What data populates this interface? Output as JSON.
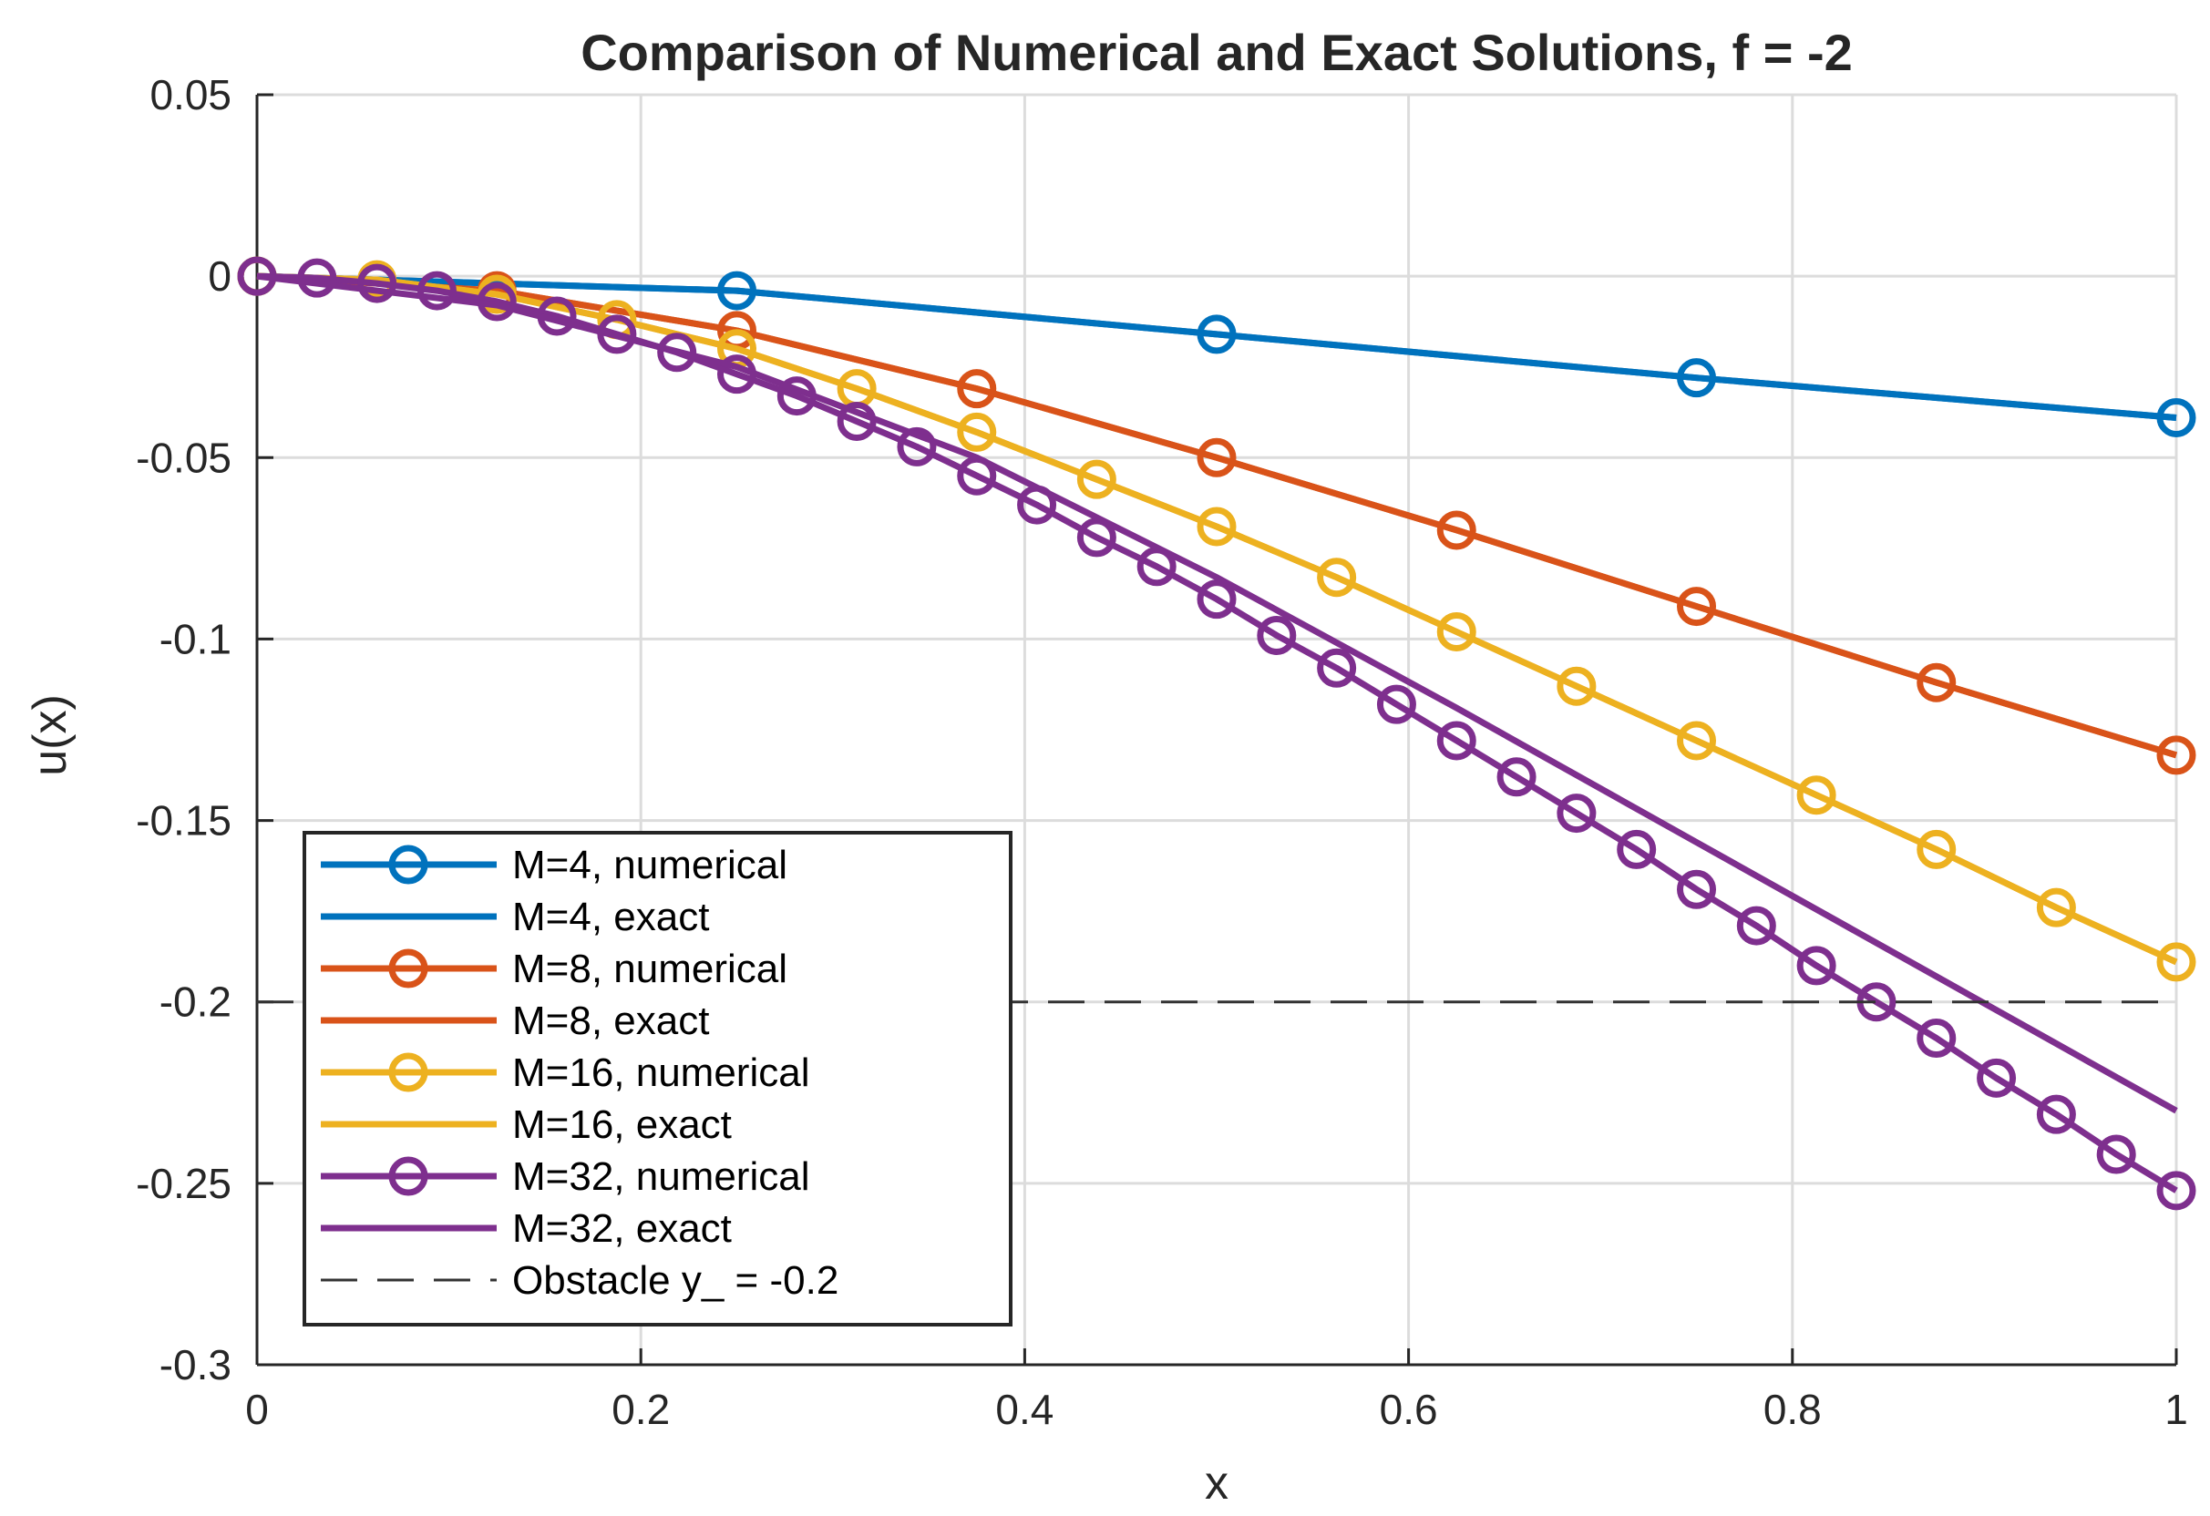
{
  "chart_data": {
    "type": "line",
    "title": "Comparison of Numerical and Exact Solutions, f = -2",
    "xlabel": "x",
    "ylabel": "u(x)",
    "xlim": [
      0,
      1
    ],
    "ylim": [
      -0.3,
      0.05
    ],
    "grid": true,
    "legend_position": "bottom-left",
    "x_ticks": [
      0,
      0.2,
      0.4,
      0.6,
      0.8,
      1
    ],
    "x_tick_labels": [
      "0",
      "0.2",
      "0.4",
      "0.6",
      "0.8",
      "1"
    ],
    "y_ticks": [
      0.05,
      0,
      -0.05,
      -0.1,
      -0.15,
      -0.2,
      -0.25,
      -0.3
    ],
    "y_tick_labels": [
      "0.05",
      "0",
      "-0.05",
      "-0.1",
      "-0.15",
      "-0.2",
      "-0.25",
      "-0.3"
    ],
    "series": [
      {
        "name": "M=4, numerical",
        "color": "#0072BD",
        "style": "line-marker",
        "x": [
          0,
          0.25,
          0.5,
          0.75,
          1
        ],
        "y": [
          0,
          -0.004,
          -0.016,
          -0.028,
          -0.039
        ]
      },
      {
        "name": "M=4, exact",
        "color": "#0072BD",
        "style": "line",
        "x": [
          0,
          0.25,
          0.5,
          0.75,
          1
        ],
        "y": [
          0,
          -0.004,
          -0.016,
          -0.028,
          -0.039
        ]
      },
      {
        "name": "M=8, numerical",
        "color": "#D95319",
        "style": "line-marker",
        "x": [
          0,
          0.125,
          0.25,
          0.375,
          0.5,
          0.625,
          0.75,
          0.875,
          1
        ],
        "y": [
          0,
          -0.004,
          -0.015,
          -0.031,
          -0.05,
          -0.07,
          -0.091,
          -0.112,
          -0.132
        ]
      },
      {
        "name": "M=8, exact",
        "color": "#D95319",
        "style": "line",
        "x": [
          0,
          0.125,
          0.25,
          0.375,
          0.5,
          0.625,
          0.75,
          0.875,
          1
        ],
        "y": [
          0,
          -0.004,
          -0.015,
          -0.031,
          -0.05,
          -0.07,
          -0.091,
          -0.112,
          -0.132
        ]
      },
      {
        "name": "M=16, numerical",
        "color": "#EDB120",
        "style": "line-marker",
        "x": [
          0,
          0.0625,
          0.125,
          0.1875,
          0.25,
          0.3125,
          0.375,
          0.4375,
          0.5,
          0.5625,
          0.625,
          0.6875,
          0.75,
          0.8125,
          0.875,
          0.9375,
          1
        ],
        "y": [
          0,
          -0.001,
          -0.005,
          -0.012,
          -0.02,
          -0.031,
          -0.043,
          -0.056,
          -0.069,
          -0.083,
          -0.098,
          -0.113,
          -0.128,
          -0.143,
          -0.158,
          -0.174,
          -0.189
        ]
      },
      {
        "name": "M=16, exact",
        "color": "#EDB120",
        "style": "line",
        "x": [
          0,
          0.0625,
          0.125,
          0.1875,
          0.25,
          0.3125,
          0.375,
          0.4375,
          0.5,
          0.5625,
          0.625,
          0.6875,
          0.75,
          0.8125,
          0.875,
          0.9375,
          1
        ],
        "y": [
          0,
          -0.001,
          -0.005,
          -0.012,
          -0.02,
          -0.031,
          -0.043,
          -0.056,
          -0.069,
          -0.083,
          -0.098,
          -0.113,
          -0.128,
          -0.143,
          -0.158,
          -0.174,
          -0.189
        ]
      },
      {
        "name": "M=32, numerical",
        "color": "#7E2F8E",
        "style": "line-marker",
        "x": [
          0,
          0.03125,
          0.0625,
          0.09375,
          0.125,
          0.15625,
          0.1875,
          0.21875,
          0.25,
          0.28125,
          0.3125,
          0.34375,
          0.375,
          0.40625,
          0.4375,
          0.46875,
          0.5,
          0.53125,
          0.5625,
          0.59375,
          0.625,
          0.65625,
          0.6875,
          0.71875,
          0.75,
          0.78125,
          0.8125,
          0.84375,
          0.875,
          0.90625,
          0.9375,
          0.96875,
          1
        ],
        "y": [
          0,
          -0.0005,
          -0.002,
          -0.004,
          -0.007,
          -0.011,
          -0.016,
          -0.021,
          -0.027,
          -0.033,
          -0.04,
          -0.047,
          -0.055,
          -0.063,
          -0.072,
          -0.08,
          -0.089,
          -0.099,
          -0.108,
          -0.118,
          -0.128,
          -0.138,
          -0.148,
          -0.158,
          -0.169,
          -0.179,
          -0.19,
          -0.2,
          -0.21,
          -0.221,
          -0.231,
          -0.242,
          -0.252
        ]
      },
      {
        "name": "M=32, exact",
        "color": "#7E2F8E",
        "style": "line",
        "x": [
          0,
          0.125,
          0.25,
          0.375,
          0.5,
          0.625,
          0.75,
          0.875,
          1
        ],
        "y": [
          0,
          -0.008,
          -0.025,
          -0.05,
          -0.083,
          -0.119,
          -0.156,
          -0.193,
          -0.23
        ]
      },
      {
        "name": "Obstacle y_ = -0.2",
        "color": "#333333",
        "style": "dashed",
        "x": [
          0,
          1
        ],
        "y": [
          -0.2,
          -0.2
        ]
      }
    ]
  },
  "legend": {
    "items": [
      "M=4, numerical",
      "M=4, exact",
      "M=8, numerical",
      "M=8, exact",
      "M=16, numerical",
      "M=16, exact",
      "M=32, numerical",
      "M=32, exact",
      "Obstacle y_ = -0.2"
    ]
  }
}
